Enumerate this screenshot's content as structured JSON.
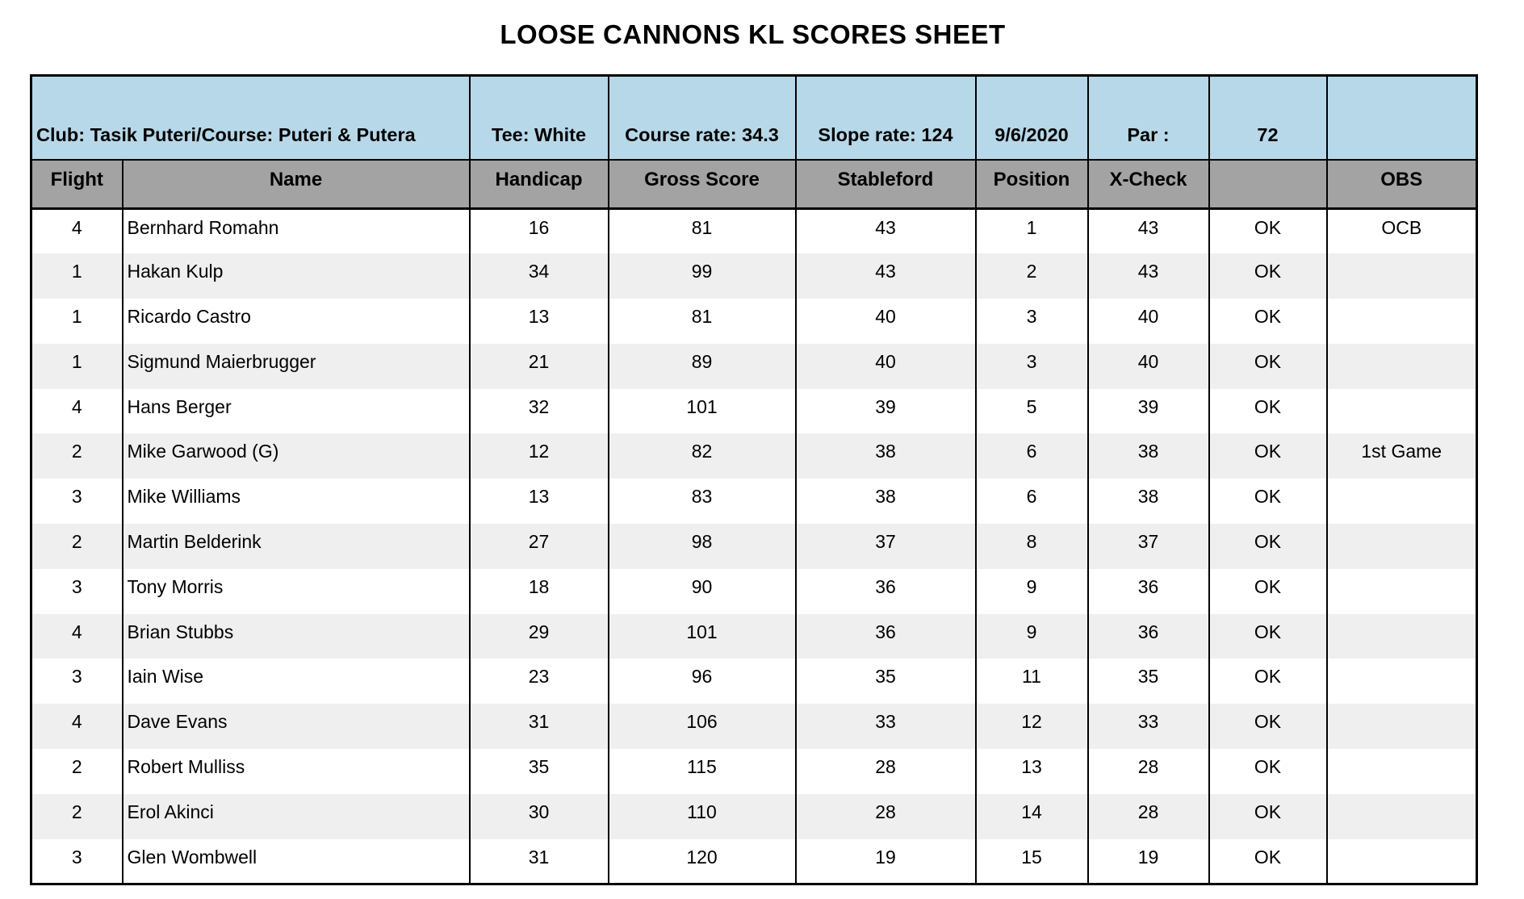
{
  "title": "LOOSE CANNONS KL SCORES SHEET",
  "info_row": {
    "club_course": "Club: Tasik Puteri/Course: Puteri & Putera",
    "tee": "Tee: White",
    "course_rate": "Course rate: 34.3",
    "slope_rate": "Slope rate: 124",
    "date": "9/6/2020",
    "par_label": "Par :",
    "par_value": "72",
    "blank": ""
  },
  "columns": [
    "Flight",
    "Name",
    "Handicap",
    "Gross Score",
    "Stableford",
    "Position",
    "X-Check",
    "",
    "OBS"
  ],
  "rows": [
    {
      "flight": "4",
      "name": "Bernhard Romahn",
      "handicap": "16",
      "gross_score": "81",
      "stableford": "43",
      "position": "1",
      "x_check": "43",
      "check": "OK",
      "obs": "OCB"
    },
    {
      "flight": "1",
      "name": "Hakan Kulp",
      "handicap": "34",
      "gross_score": "99",
      "stableford": "43",
      "position": "2",
      "x_check": "43",
      "check": "OK",
      "obs": ""
    },
    {
      "flight": "1",
      "name": "Ricardo Castro",
      "handicap": "13",
      "gross_score": "81",
      "stableford": "40",
      "position": "3",
      "x_check": "40",
      "check": "OK",
      "obs": ""
    },
    {
      "flight": "1",
      "name": "Sigmund Maierbrugger",
      "handicap": "21",
      "gross_score": "89",
      "stableford": "40",
      "position": "3",
      "x_check": "40",
      "check": "OK",
      "obs": ""
    },
    {
      "flight": "4",
      "name": "Hans Berger",
      "handicap": "32",
      "gross_score": "101",
      "stableford": "39",
      "position": "5",
      "x_check": "39",
      "check": "OK",
      "obs": ""
    },
    {
      "flight": "2",
      "name": "Mike Garwood (G)",
      "handicap": "12",
      "gross_score": "82",
      "stableford": "38",
      "position": "6",
      "x_check": "38",
      "check": "OK",
      "obs": "1st Game"
    },
    {
      "flight": "3",
      "name": "Mike Williams",
      "handicap": "13",
      "gross_score": "83",
      "stableford": "38",
      "position": "6",
      "x_check": "38",
      "check": "OK",
      "obs": ""
    },
    {
      "flight": "2",
      "name": "Martin Belderink",
      "handicap": "27",
      "gross_score": "98",
      "stableford": "37",
      "position": "8",
      "x_check": "37",
      "check": "OK",
      "obs": ""
    },
    {
      "flight": "3",
      "name": "Tony Morris",
      "handicap": "18",
      "gross_score": "90",
      "stableford": "36",
      "position": "9",
      "x_check": "36",
      "check": "OK",
      "obs": ""
    },
    {
      "flight": "4",
      "name": "Brian Stubbs",
      "handicap": "29",
      "gross_score": "101",
      "stableford": "36",
      "position": "9",
      "x_check": "36",
      "check": "OK",
      "obs": ""
    },
    {
      "flight": "3",
      "name": "Iain Wise",
      "handicap": "23",
      "gross_score": "96",
      "stableford": "35",
      "position": "11",
      "x_check": "35",
      "check": "OK",
      "obs": ""
    },
    {
      "flight": "4",
      "name": "Dave Evans",
      "handicap": "31",
      "gross_score": "106",
      "stableford": "33",
      "position": "12",
      "x_check": "33",
      "check": "OK",
      "obs": ""
    },
    {
      "flight": "2",
      "name": "Robert Mulliss",
      "handicap": "35",
      "gross_score": "115",
      "stableford": "28",
      "position": "13",
      "x_check": "28",
      "check": "OK",
      "obs": ""
    },
    {
      "flight": "2",
      "name": "Erol Akinci",
      "handicap": "30",
      "gross_score": "110",
      "stableford": "28",
      "position": "14",
      "x_check": "28",
      "check": "OK",
      "obs": ""
    },
    {
      "flight": "3",
      "name": "Glen Wombwell",
      "handicap": "31",
      "gross_score": "120",
      "stableford": "19",
      "position": "15",
      "x_check": "19",
      "check": "OK",
      "obs": ""
    }
  ],
  "colors": {
    "info_row_blue": "#b7d8e8",
    "header_gray": "#a3a3a3",
    "row_alt_gray": "#efefef",
    "row_white": "#ffffff",
    "border_black": "#000000"
  }
}
